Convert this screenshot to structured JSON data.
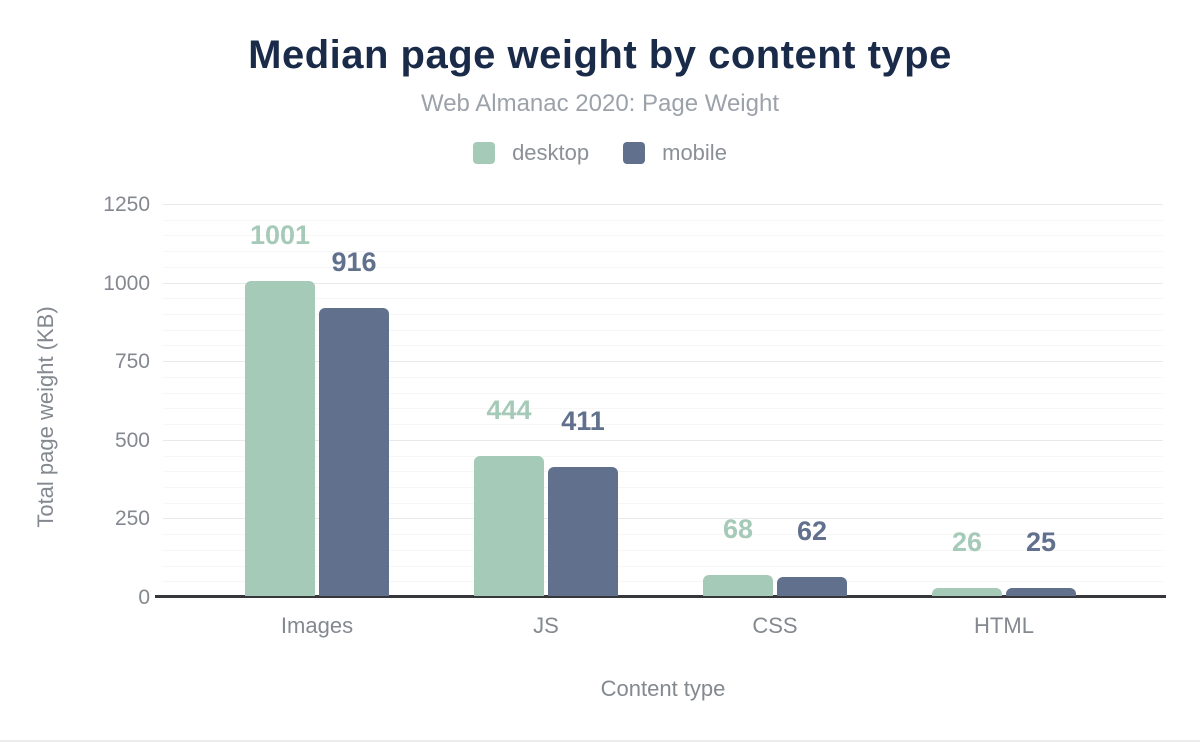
{
  "figure": {
    "title": "Median page weight by content type",
    "subtitle": "Web Almanac 2020: Page Weight",
    "x_axis_title": "Content type",
    "y_axis_title": "Total page weight (KB)"
  },
  "chart_data": {
    "type": "bar",
    "title": "Median page weight by content type",
    "subtitle": "Web Almanac 2020: Page Weight",
    "xlabel": "Content type",
    "ylabel": "Total page weight (KB)",
    "categories": [
      "Images",
      "JS",
      "CSS",
      "HTML"
    ],
    "series": [
      {
        "name": "desktop",
        "color": "#a6cab8",
        "values": [
          1001,
          444,
          68,
          26
        ]
      },
      {
        "name": "mobile",
        "color": "#61708c",
        "values": [
          916,
          411,
          62,
          25
        ]
      }
    ],
    "ylim": [
      0,
      1250
    ],
    "yticks": [
      0,
      250,
      500,
      750,
      1000,
      1250
    ],
    "minor_tick_step": 50,
    "grid": true,
    "legend_position": "top",
    "value_labels": true
  },
  "colors": {
    "title_text": "#1a2b4a",
    "subtitle_text": "#9ca2aa",
    "axis_text": "#84888f",
    "legend_text": "#8b9097",
    "baseline": "#36373b",
    "gridline_major": "#e9e9ea",
    "gridline_minor": "#f6f6f7"
  }
}
